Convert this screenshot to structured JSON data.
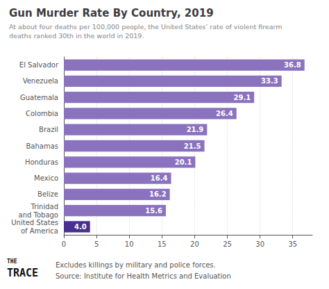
{
  "chart_data": {
    "type": "bar",
    "orientation": "horizontal",
    "title": "Gun Murder Rate By Country, 2019",
    "subtitle": "At about four deaths per 100,000 people, the United States’ rate of violent firearm\ndeaths ranked 30th in the world in 2019.",
    "categories": [
      "El Salvador",
      "Venezuela",
      "Guatemala",
      "Colombia",
      "Brazil",
      "Bahamas",
      "Honduras",
      "Mexico",
      "Belize",
      "Trinidad\nand Tobago",
      "United States\nof America"
    ],
    "values": [
      36.8,
      33.3,
      29.1,
      26.4,
      21.9,
      21.5,
      20.1,
      16.4,
      16.2,
      15.6,
      4.0
    ],
    "value_labels": [
      "36.8",
      "33.3",
      "29.1",
      "26.4",
      "21.9",
      "21.5",
      "20.1",
      "16.4",
      "16.2",
      "15.6",
      "4.0"
    ],
    "colors": [
      "#8b72be",
      "#8b72be",
      "#8b72be",
      "#8b72be",
      "#8b72be",
      "#8b72be",
      "#8b72be",
      "#8b72be",
      "#8b72be",
      "#8b72be",
      "#4a2f8f"
    ],
    "data_labels": true,
    "xlim": [
      0,
      38
    ],
    "xticks": [
      0,
      5,
      10,
      15,
      20,
      25,
      30,
      35
    ],
    "grid": true,
    "annotations": [
      "THE",
      "TRACE",
      "Excludes killings by military and police forces.",
      "Source: Institute for Health Metrics and Evaluation"
    ]
  }
}
